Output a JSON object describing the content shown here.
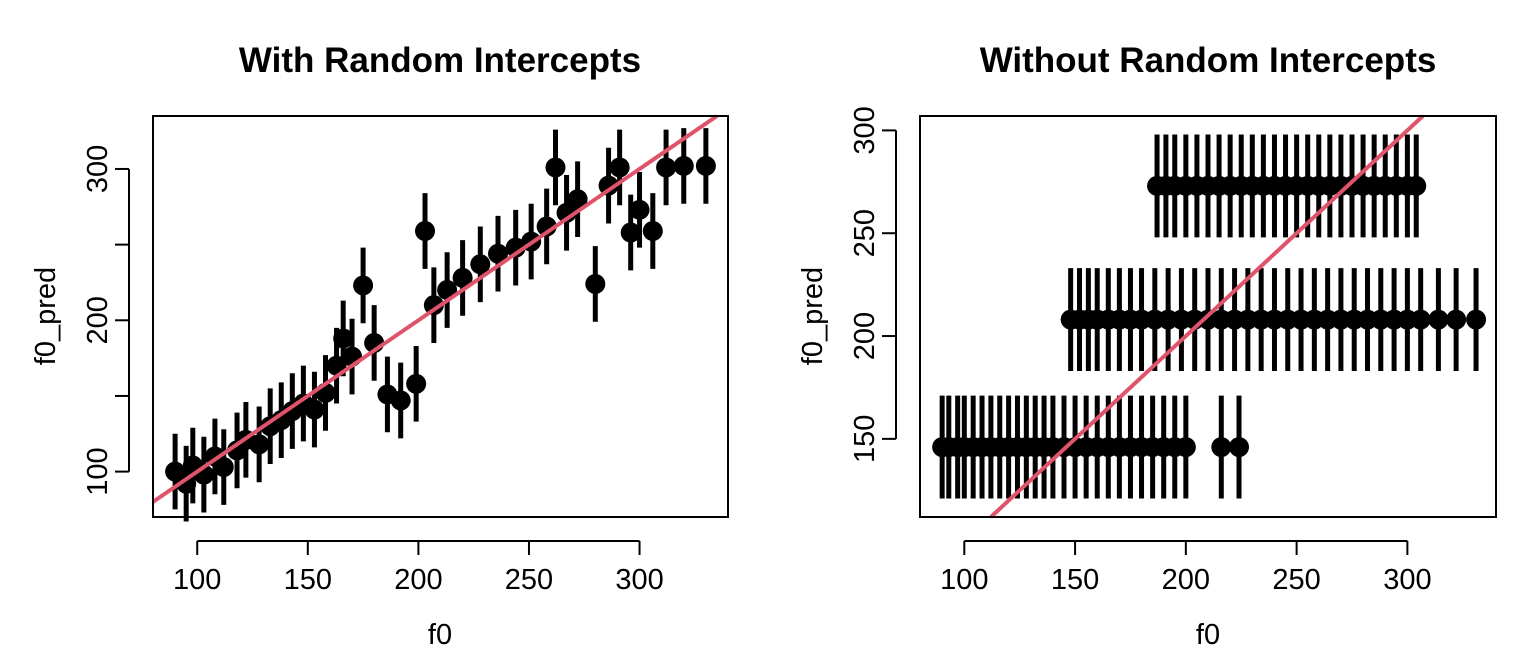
{
  "chart_data": [
    {
      "type": "scatter",
      "title": "With Random Intercepts",
      "xlabel": "f0",
      "ylabel": "f0_pred",
      "xlim": [
        80,
        340
      ],
      "ylim": [
        70,
        335
      ],
      "xticks": [
        100,
        150,
        200,
        250,
        300
      ],
      "yticks": [
        100,
        200,
        300
      ],
      "yticks_minor": [
        150,
        250
      ],
      "reference_line": {
        "intercept": 0,
        "slope": 1,
        "color": "#DF536B"
      },
      "point_color": "#000000",
      "error_bar_halfwidth": 25,
      "series": [
        {
          "points": [
            {
              "x": 90,
              "y": 100
            },
            {
              "x": 95,
              "y": 92
            },
            {
              "x": 98,
              "y": 104
            },
            {
              "x": 103,
              "y": 98
            },
            {
              "x": 108,
              "y": 110
            },
            {
              "x": 112,
              "y": 103
            },
            {
              "x": 118,
              "y": 114
            },
            {
              "x": 122,
              "y": 121
            },
            {
              "x": 128,
              "y": 118
            },
            {
              "x": 133,
              "y": 130
            },
            {
              "x": 138,
              "y": 134
            },
            {
              "x": 143,
              "y": 140
            },
            {
              "x": 148,
              "y": 145
            },
            {
              "x": 153,
              "y": 141
            },
            {
              "x": 158,
              "y": 152
            },
            {
              "x": 163,
              "y": 170
            },
            {
              "x": 166,
              "y": 188
            },
            {
              "x": 170,
              "y": 176
            },
            {
              "x": 175,
              "y": 223
            },
            {
              "x": 180,
              "y": 185
            },
            {
              "x": 186,
              "y": 151
            },
            {
              "x": 192,
              "y": 147
            },
            {
              "x": 199,
              "y": 158
            },
            {
              "x": 203,
              "y": 259
            },
            {
              "x": 207,
              "y": 210
            },
            {
              "x": 213,
              "y": 220
            },
            {
              "x": 220,
              "y": 228
            },
            {
              "x": 228,
              "y": 237
            },
            {
              "x": 236,
              "y": 244
            },
            {
              "x": 244,
              "y": 248
            },
            {
              "x": 251,
              "y": 252
            },
            {
              "x": 258,
              "y": 262
            },
            {
              "x": 262,
              "y": 301
            },
            {
              "x": 267,
              "y": 271
            },
            {
              "x": 272,
              "y": 280
            },
            {
              "x": 280,
              "y": 224
            },
            {
              "x": 286,
              "y": 289
            },
            {
              "x": 291,
              "y": 301
            },
            {
              "x": 296,
              "y": 258
            },
            {
              "x": 300,
              "y": 273
            },
            {
              "x": 306,
              "y": 259
            },
            {
              "x": 312,
              "y": 301
            },
            {
              "x": 320,
              "y": 302
            },
            {
              "x": 330,
              "y": 302
            }
          ]
        }
      ]
    },
    {
      "type": "scatter",
      "title": "Without Random Intercepts",
      "xlabel": "f0",
      "ylabel": "f0_pred",
      "xlim": [
        80,
        340
      ],
      "ylim": [
        112,
        307
      ],
      "xticks": [
        100,
        150,
        200,
        250,
        300
      ],
      "yticks": [
        150,
        200,
        250,
        300
      ],
      "reference_line": {
        "intercept": 0,
        "slope": 1,
        "color": "#DF536B"
      },
      "point_color": "#000000",
      "error_bar_halfwidth": 25,
      "groups": [
        {
          "y": 146,
          "x": [
            90,
            93,
            97,
            100,
            104,
            108,
            112,
            116,
            120,
            124,
            128,
            132,
            136,
            140,
            145,
            150,
            155,
            160,
            165,
            170,
            175,
            180,
            185,
            190,
            195,
            200,
            216,
            224
          ]
        },
        {
          "y": 208,
          "x": [
            148,
            152,
            156,
            160,
            165,
            170,
            175,
            180,
            186,
            192,
            198,
            204,
            210,
            216,
            222,
            228,
            234,
            240,
            246,
            252,
            258,
            264,
            270,
            276,
            282,
            288,
            294,
            300,
            306,
            314,
            322,
            331
          ]
        },
        {
          "y": 273,
          "x": [
            187,
            191,
            195,
            200,
            205,
            210,
            215,
            220,
            225,
            230,
            235,
            240,
            245,
            250,
            255,
            260,
            265,
            270,
            275,
            280,
            285,
            290,
            295,
            300,
            304
          ]
        }
      ]
    }
  ]
}
